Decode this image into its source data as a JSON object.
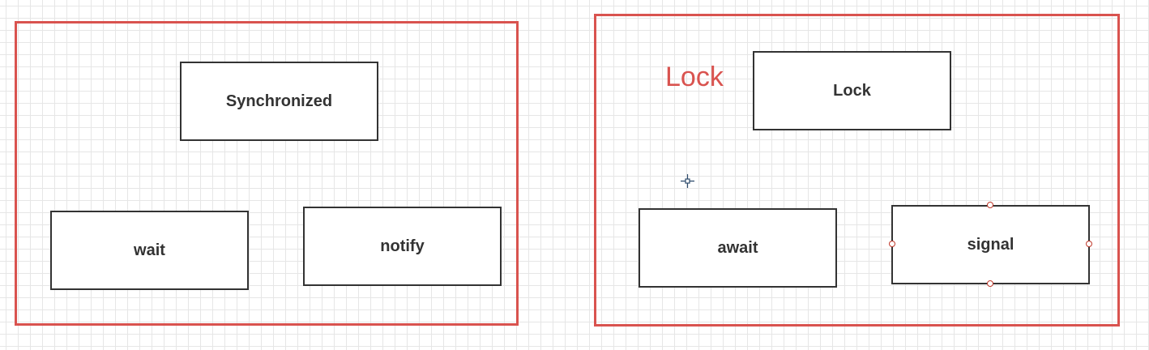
{
  "colors": {
    "group_border": "#d9534f",
    "box_border": "#333333",
    "label": "#d9534f",
    "handle": "#c0392b"
  },
  "left_group": {
    "title_box": "Synchronized",
    "wait_box": "wait",
    "notify_box": "notify"
  },
  "right_group": {
    "red_label": "Lock",
    "title_box": "Lock",
    "await_box": "await",
    "signal_box": "signal"
  },
  "icons": {
    "cursor": "crosshair-move-icon",
    "handle": "resize-handle-icon"
  }
}
